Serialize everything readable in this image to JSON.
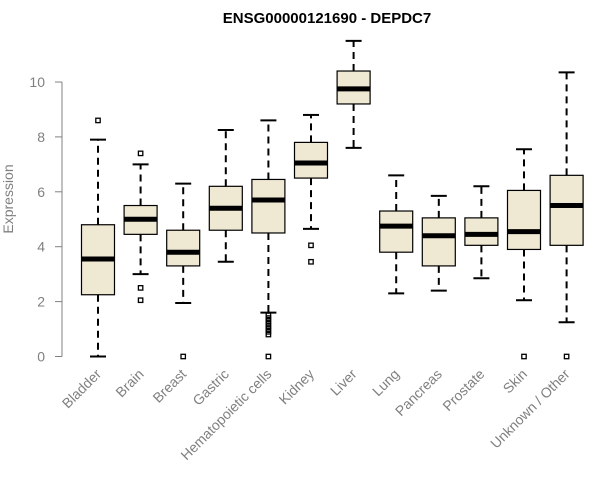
{
  "chart_data": {
    "type": "boxplot",
    "title": "ENSG00000121690 - DEPDC7",
    "xlabel": "",
    "ylabel": "Expression",
    "ylim": [
      0,
      11.6
    ],
    "yticks": [
      0,
      2,
      4,
      6,
      8,
      10
    ],
    "grid": false,
    "legend": "none",
    "box_fill": "#efe8d2",
    "box_stroke": "#000000",
    "median_color": "#000000",
    "axis_color": "#808080",
    "categories": [
      "Bladder",
      "Brain",
      "Breast",
      "Gastric",
      "Hematopoietic cells",
      "Kidney",
      "Liver",
      "Lung",
      "Pancreas",
      "Prostate",
      "Skin",
      "Unknown / Other"
    ],
    "boxes": [
      {
        "q1": 2.25,
        "median": 3.55,
        "q3": 4.8,
        "whisker_low": 0.0,
        "whisker_high": 7.9,
        "outliers": [
          8.6
        ]
      },
      {
        "q1": 4.45,
        "median": 5.0,
        "q3": 5.5,
        "whisker_low": 3.0,
        "whisker_high": 7.0,
        "outliers": [
          2.05,
          2.5,
          7.4
        ]
      },
      {
        "q1": 3.3,
        "median": 3.8,
        "q3": 4.6,
        "whisker_low": 1.95,
        "whisker_high": 6.3,
        "outliers": [
          0.0
        ]
      },
      {
        "q1": 4.6,
        "median": 5.4,
        "q3": 6.2,
        "whisker_low": 3.45,
        "whisker_high": 8.25,
        "outliers": []
      },
      {
        "q1": 4.5,
        "median": 5.7,
        "q3": 6.45,
        "whisker_low": 1.6,
        "whisker_high": 8.6,
        "outliers": [
          0.0,
          0.8,
          0.9,
          1.0,
          1.1,
          1.2,
          1.3,
          1.4,
          1.5
        ]
      },
      {
        "q1": 6.5,
        "median": 7.05,
        "q3": 7.8,
        "whisker_low": 4.65,
        "whisker_high": 8.8,
        "outliers": [
          3.45,
          4.05
        ]
      },
      {
        "q1": 9.2,
        "median": 9.75,
        "q3": 10.4,
        "whisker_low": 7.6,
        "whisker_high": 11.5,
        "outliers": []
      },
      {
        "q1": 3.8,
        "median": 4.75,
        "q3": 5.3,
        "whisker_low": 2.3,
        "whisker_high": 6.6,
        "outliers": []
      },
      {
        "q1": 3.3,
        "median": 4.4,
        "q3": 5.05,
        "whisker_low": 2.4,
        "whisker_high": 5.85,
        "outliers": []
      },
      {
        "q1": 4.05,
        "median": 4.45,
        "q3": 5.05,
        "whisker_low": 2.85,
        "whisker_high": 6.2,
        "outliers": []
      },
      {
        "q1": 3.9,
        "median": 4.55,
        "q3": 6.05,
        "whisker_low": 2.05,
        "whisker_high": 7.55,
        "outliers": [
          0.0
        ]
      },
      {
        "q1": 4.05,
        "median": 5.5,
        "q3": 6.6,
        "whisker_low": 1.25,
        "whisker_high": 10.35,
        "outliers": [
          0.0
        ]
      }
    ]
  }
}
